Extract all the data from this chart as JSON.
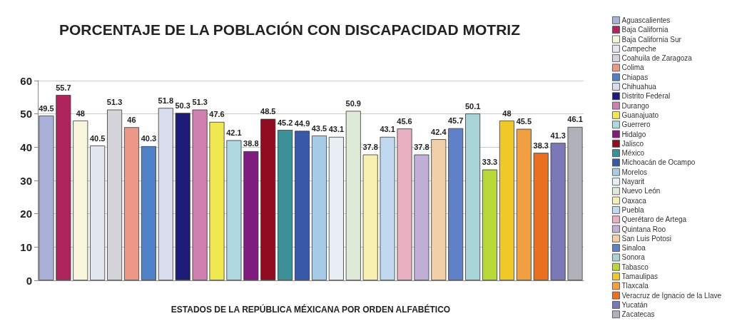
{
  "chart_data": {
    "type": "bar",
    "title": "PORCENTAJE DE LA POBLACIÓN CON DISCAPACIDAD MOTRIZ",
    "xlabel": "ESTADOS DE LA REPÚBLICA MÉXICANA POR ORDEN ALFABÉTICO",
    "categories": [
      null,
      null,
      null,
      null,
      null,
      null,
      null,
      null,
      null,
      null,
      null,
      null,
      null,
      null,
      null,
      null,
      null,
      null,
      null,
      null,
      null,
      null,
      null,
      null,
      null,
      null,
      null,
      null,
      null,
      null,
      null,
      null
    ],
    "series": [
      {
        "name": "Aguascalientes",
        "color": "#aab0d8",
        "values": [
          49.5,
          null,
          null,
          null,
          null,
          null,
          null,
          null,
          null,
          null,
          null,
          null,
          null,
          null,
          null,
          null,
          null,
          null,
          null,
          null,
          null,
          null,
          null,
          null,
          null,
          null,
          null,
          null,
          null,
          null,
          null,
          null
        ]
      },
      {
        "name": "Baja California",
        "color": "#b0245e",
        "values": [
          null,
          55.7,
          null,
          null,
          null,
          null,
          null,
          null,
          null,
          null,
          null,
          null,
          null,
          null,
          null,
          null,
          null,
          null,
          null,
          null,
          null,
          null,
          null,
          null,
          null,
          null,
          null,
          null,
          null,
          null,
          null,
          null
        ]
      },
      {
        "name": "Baja California Sur",
        "color": "#f8f6dc",
        "values": [
          null,
          null,
          48,
          null,
          null,
          null,
          null,
          null,
          null,
          null,
          null,
          null,
          null,
          null,
          null,
          null,
          null,
          null,
          null,
          null,
          null,
          null,
          null,
          null,
          null,
          null,
          null,
          null,
          null,
          null,
          null,
          null
        ]
      },
      {
        "name": "Campeche",
        "color": "#e2e6ee",
        "values": [
          null,
          null,
          null,
          40.5,
          null,
          null,
          null,
          null,
          null,
          null,
          null,
          null,
          null,
          null,
          null,
          null,
          null,
          null,
          null,
          null,
          null,
          null,
          null,
          null,
          null,
          null,
          null,
          null,
          null,
          null,
          null,
          null
        ]
      },
      {
        "name": "Coahuila de Zaragoza",
        "color": "#d4d4d8",
        "values": [
          null,
          null,
          null,
          null,
          51.3,
          null,
          null,
          null,
          null,
          null,
          null,
          null,
          null,
          null,
          null,
          null,
          null,
          null,
          null,
          null,
          null,
          null,
          null,
          null,
          null,
          null,
          null,
          null,
          null,
          null,
          null,
          null
        ]
      },
      {
        "name": "Colima",
        "color": "#ec9888",
        "values": [
          null,
          null,
          null,
          null,
          null,
          46,
          null,
          null,
          null,
          null,
          null,
          null,
          null,
          null,
          null,
          null,
          null,
          null,
          null,
          null,
          null,
          null,
          null,
          null,
          null,
          null,
          null,
          null,
          null,
          null,
          null,
          null
        ]
      },
      {
        "name": "Chiapas",
        "color": "#5080c8",
        "values": [
          null,
          null,
          null,
          null,
          null,
          null,
          40.3,
          null,
          null,
          null,
          null,
          null,
          null,
          null,
          null,
          null,
          null,
          null,
          null,
          null,
          null,
          null,
          null,
          null,
          null,
          null,
          null,
          null,
          null,
          null,
          null,
          null
        ]
      },
      {
        "name": "Chihuahua",
        "color": "#d8dcec",
        "values": [
          null,
          null,
          null,
          null,
          null,
          null,
          null,
          51.8,
          null,
          null,
          null,
          null,
          null,
          null,
          null,
          null,
          null,
          null,
          null,
          null,
          null,
          null,
          null,
          null,
          null,
          null,
          null,
          null,
          null,
          null,
          null,
          null
        ]
      },
      {
        "name": "Distrito Federal",
        "color": "#1c1c78",
        "values": [
          null,
          null,
          null,
          null,
          null,
          null,
          null,
          null,
          50.3,
          null,
          null,
          null,
          null,
          null,
          null,
          null,
          null,
          null,
          null,
          null,
          null,
          null,
          null,
          null,
          null,
          null,
          null,
          null,
          null,
          null,
          null,
          null
        ]
      },
      {
        "name": "Durango",
        "color": "#d080b0",
        "values": [
          null,
          null,
          null,
          null,
          null,
          null,
          null,
          null,
          null,
          51.3,
          null,
          null,
          null,
          null,
          null,
          null,
          null,
          null,
          null,
          null,
          null,
          null,
          null,
          null,
          null,
          null,
          null,
          null,
          null,
          null,
          null,
          null
        ]
      },
      {
        "name": "Guanajuato",
        "color": "#f0e850",
        "values": [
          null,
          null,
          null,
          null,
          null,
          null,
          null,
          null,
          null,
          null,
          47.6,
          null,
          null,
          null,
          null,
          null,
          null,
          null,
          null,
          null,
          null,
          null,
          null,
          null,
          null,
          null,
          null,
          null,
          null,
          null,
          null,
          null
        ]
      },
      {
        "name": "Guerrero",
        "color": "#b0d8e0",
        "values": [
          null,
          null,
          null,
          null,
          null,
          null,
          null,
          null,
          null,
          null,
          null,
          42.1,
          null,
          null,
          null,
          null,
          null,
          null,
          null,
          null,
          null,
          null,
          null,
          null,
          null,
          null,
          null,
          null,
          null,
          null,
          null,
          null
        ]
      },
      {
        "name": "Hidalgo",
        "color": "#801c80",
        "values": [
          null,
          null,
          null,
          null,
          null,
          null,
          null,
          null,
          null,
          null,
          null,
          null,
          38.8,
          null,
          null,
          null,
          null,
          null,
          null,
          null,
          null,
          null,
          null,
          null,
          null,
          null,
          null,
          null,
          null,
          null,
          null,
          null
        ]
      },
      {
        "name": "Jalisco",
        "color": "#900c20",
        "values": [
          null,
          null,
          null,
          null,
          null,
          null,
          null,
          null,
          null,
          null,
          null,
          null,
          null,
          48.5,
          null,
          null,
          null,
          null,
          null,
          null,
          null,
          null,
          null,
          null,
          null,
          null,
          null,
          null,
          null,
          null,
          null,
          null
        ]
      },
      {
        "name": "México",
        "color": "#3c9098",
        "values": [
          null,
          null,
          null,
          null,
          null,
          null,
          null,
          null,
          null,
          null,
          null,
          null,
          null,
          null,
          45.2,
          null,
          null,
          null,
          null,
          null,
          null,
          null,
          null,
          null,
          null,
          null,
          null,
          null,
          null,
          null,
          null,
          null
        ]
      },
      {
        "name": "Michoacán de Ocampo",
        "color": "#3858a8",
        "values": [
          null,
          null,
          null,
          null,
          null,
          null,
          null,
          null,
          null,
          null,
          null,
          null,
          null,
          null,
          null,
          44.9,
          null,
          null,
          null,
          null,
          null,
          null,
          null,
          null,
          null,
          null,
          null,
          null,
          null,
          null,
          null,
          null
        ]
      },
      {
        "name": "Morelos",
        "color": "#a8cce8",
        "values": [
          null,
          null,
          null,
          null,
          null,
          null,
          null,
          null,
          null,
          null,
          null,
          null,
          null,
          null,
          null,
          null,
          43.5,
          null,
          null,
          null,
          null,
          null,
          null,
          null,
          null,
          null,
          null,
          null,
          null,
          null,
          null,
          null
        ]
      },
      {
        "name": "Nayarit",
        "color": "#e8eef4",
        "values": [
          null,
          null,
          null,
          null,
          null,
          null,
          null,
          null,
          null,
          null,
          null,
          null,
          null,
          null,
          null,
          null,
          null,
          43.1,
          null,
          null,
          null,
          null,
          null,
          null,
          null,
          null,
          null,
          null,
          null,
          null,
          null,
          null
        ]
      },
      {
        "name": "Nuevo León",
        "color": "#e0ead8",
        "values": [
          null,
          null,
          null,
          null,
          null,
          null,
          null,
          null,
          null,
          null,
          null,
          null,
          null,
          null,
          null,
          null,
          null,
          null,
          50.9,
          null,
          null,
          null,
          null,
          null,
          null,
          null,
          null,
          null,
          null,
          null,
          null,
          null
        ]
      },
      {
        "name": "Oaxaca",
        "color": "#f8f0b0",
        "values": [
          null,
          null,
          null,
          null,
          null,
          null,
          null,
          null,
          null,
          null,
          null,
          null,
          null,
          null,
          null,
          null,
          null,
          null,
          null,
          37.8,
          null,
          null,
          null,
          null,
          null,
          null,
          null,
          null,
          null,
          null,
          null,
          null
        ]
      },
      {
        "name": "Puebla",
        "color": "#c0d8f0",
        "values": [
          null,
          null,
          null,
          null,
          null,
          null,
          null,
          null,
          null,
          null,
          null,
          null,
          null,
          null,
          null,
          null,
          null,
          null,
          null,
          null,
          43.1,
          null,
          null,
          null,
          null,
          null,
          null,
          null,
          null,
          null,
          null,
          null
        ]
      },
      {
        "name": "Querétaro de Artega",
        "color": "#e8b0c0",
        "values": [
          null,
          null,
          null,
          null,
          null,
          null,
          null,
          null,
          null,
          null,
          null,
          null,
          null,
          null,
          null,
          null,
          null,
          null,
          null,
          null,
          null,
          45.6,
          null,
          null,
          null,
          null,
          null,
          null,
          null,
          null,
          null,
          null
        ]
      },
      {
        "name": "Quintana Roo",
        "color": "#c0b0d8",
        "values": [
          null,
          null,
          null,
          null,
          null,
          null,
          null,
          null,
          null,
          null,
          null,
          null,
          null,
          null,
          null,
          null,
          null,
          null,
          null,
          null,
          null,
          null,
          37.8,
          null,
          null,
          null,
          null,
          null,
          null,
          null,
          null,
          null
        ]
      },
      {
        "name": "San Luis Potosi",
        "color": "#f0d0a8",
        "values": [
          null,
          null,
          null,
          null,
          null,
          null,
          null,
          null,
          null,
          null,
          null,
          null,
          null,
          null,
          null,
          null,
          null,
          null,
          null,
          null,
          null,
          null,
          null,
          42.4,
          null,
          null,
          null,
          null,
          null,
          null,
          null,
          null
        ]
      },
      {
        "name": "Sinaloa",
        "color": "#6080c8",
        "values": [
          null,
          null,
          null,
          null,
          null,
          null,
          null,
          null,
          null,
          null,
          null,
          null,
          null,
          null,
          null,
          null,
          null,
          null,
          null,
          null,
          null,
          null,
          null,
          null,
          45.7,
          null,
          null,
          null,
          null,
          null,
          null,
          null
        ]
      },
      {
        "name": "Sonora",
        "color": "#a8d4d8",
        "values": [
          null,
          null,
          null,
          null,
          null,
          null,
          null,
          null,
          null,
          null,
          null,
          null,
          null,
          null,
          null,
          null,
          null,
          null,
          null,
          null,
          null,
          null,
          null,
          null,
          null,
          50.1,
          null,
          null,
          null,
          null,
          null,
          null
        ]
      },
      {
        "name": "Tabasco",
        "color": "#b8d838",
        "values": [
          null,
          null,
          null,
          null,
          null,
          null,
          null,
          null,
          null,
          null,
          null,
          null,
          null,
          null,
          null,
          null,
          null,
          null,
          null,
          null,
          null,
          null,
          null,
          null,
          null,
          null,
          33.3,
          null,
          null,
          null,
          null,
          null
        ]
      },
      {
        "name": "Tamaulipas",
        "color": "#f0c828",
        "values": [
          null,
          null,
          null,
          null,
          null,
          null,
          null,
          null,
          null,
          null,
          null,
          null,
          null,
          null,
          null,
          null,
          null,
          null,
          null,
          null,
          null,
          null,
          null,
          null,
          null,
          null,
          null,
          48,
          null,
          null,
          null,
          null
        ]
      },
      {
        "name": "Tlaxcala",
        "color": "#f0a040",
        "values": [
          null,
          null,
          null,
          null,
          null,
          null,
          null,
          null,
          null,
          null,
          null,
          null,
          null,
          null,
          null,
          null,
          null,
          null,
          null,
          null,
          null,
          null,
          null,
          null,
          null,
          null,
          null,
          null,
          45.5,
          null,
          null,
          null
        ]
      },
      {
        "name": "Veracruz de Ignacio de la Llave",
        "color": "#e87020",
        "values": [
          null,
          null,
          null,
          null,
          null,
          null,
          null,
          null,
          null,
          null,
          null,
          null,
          null,
          null,
          null,
          null,
          null,
          null,
          null,
          null,
          null,
          null,
          null,
          null,
          null,
          null,
          null,
          null,
          null,
          38.3,
          null,
          null
        ]
      },
      {
        "name": "Yucatán",
        "color": "#7c78b8",
        "values": [
          null,
          null,
          null,
          null,
          null,
          null,
          null,
          null,
          null,
          null,
          null,
          null,
          null,
          null,
          null,
          null,
          null,
          null,
          null,
          null,
          null,
          null,
          null,
          null,
          null,
          null,
          null,
          null,
          null,
          null,
          41.3,
          null
        ]
      },
      {
        "name": "Zacatecas",
        "color": "#b0b0b8",
        "values": [
          null,
          null,
          null,
          null,
          null,
          null,
          null,
          null,
          null,
          null,
          null,
          null,
          null,
          null,
          null,
          null,
          null,
          null,
          null,
          null,
          null,
          null,
          null,
          null,
          null,
          null,
          null,
          null,
          null,
          null,
          null,
          46.1
        ]
      }
    ],
    "ylim": [
      0,
      60
    ],
    "yticks": [
      0,
      10,
      20,
      30,
      40,
      50,
      60
    ],
    "grid": "y",
    "legend": "right",
    "data_labels": true,
    "tick_labels": "y"
  }
}
